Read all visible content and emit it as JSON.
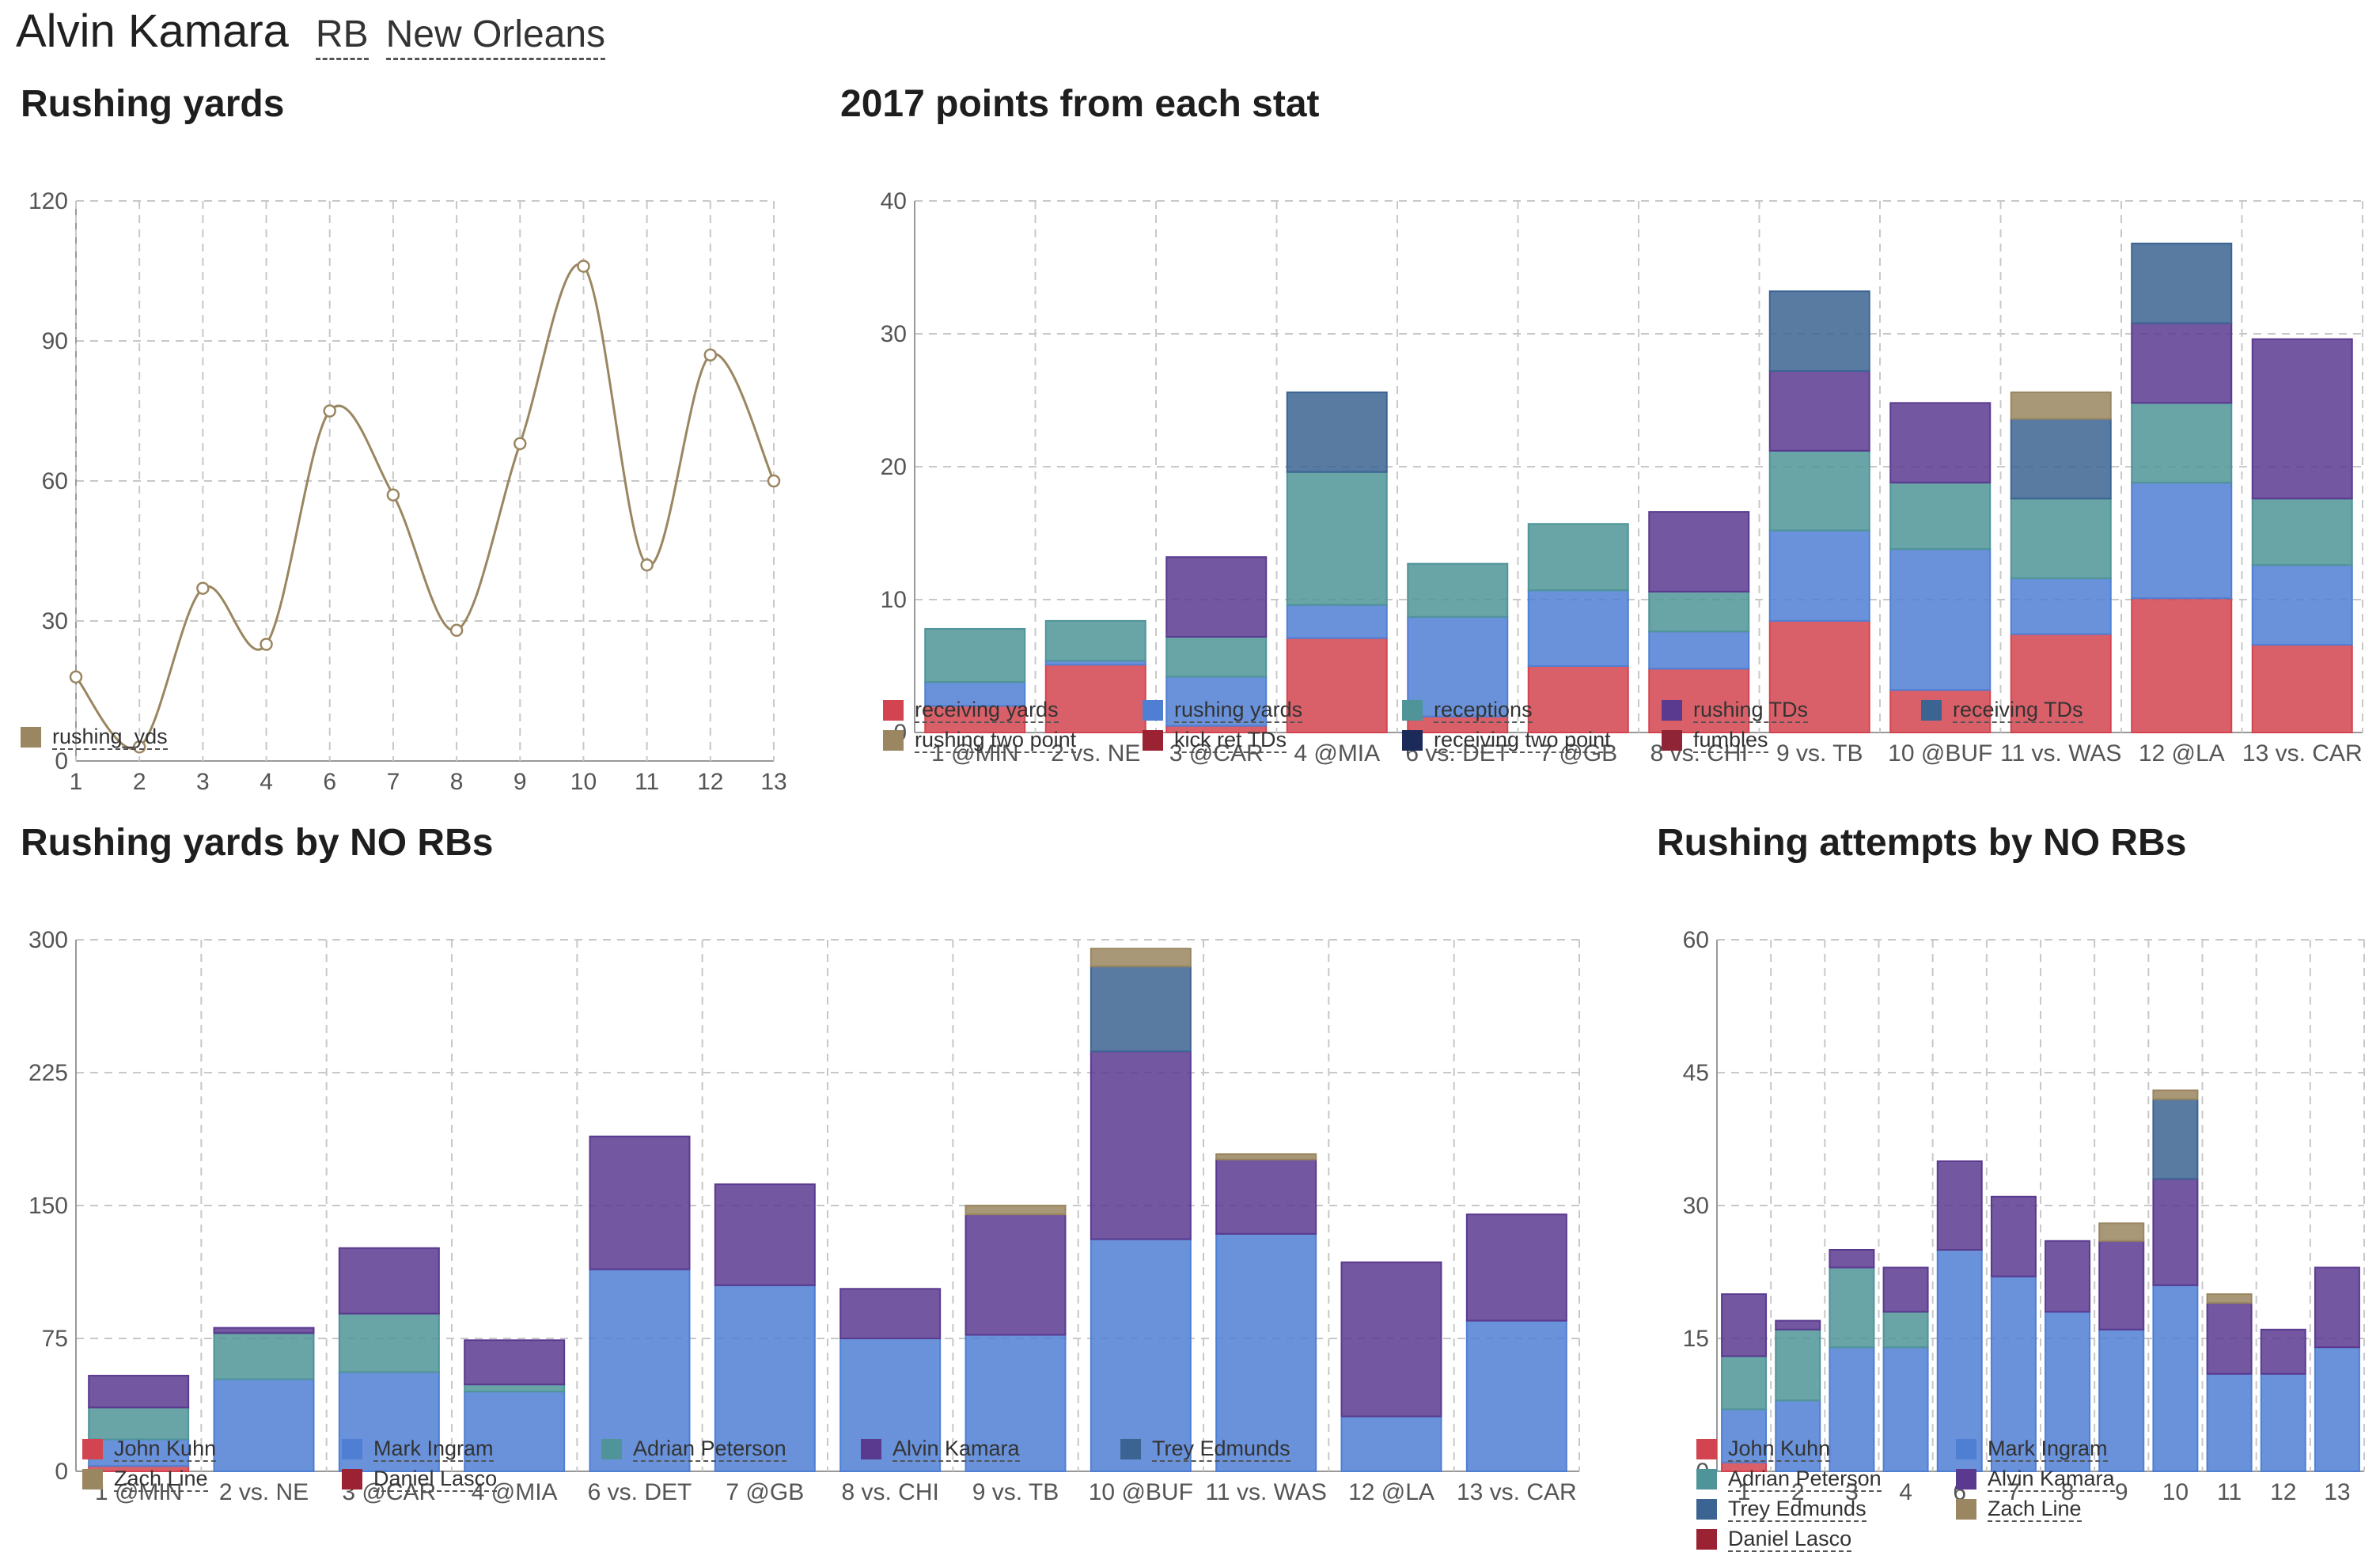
{
  "header": {
    "name": "Alvin Kamara",
    "position": "RB",
    "team": "New Orleans"
  },
  "chart_data": [
    {
      "id": "rushing_yards",
      "type": "line",
      "title": "Rushing yards",
      "x": [
        "1",
        "2",
        "3",
        "4",
        "6",
        "7",
        "8",
        "9",
        "10",
        "11",
        "12",
        "13"
      ],
      "series": [
        {
          "name": "rushing_yds",
          "color": "#9a8660",
          "values": [
            18,
            3,
            37,
            25,
            75,
            57,
            28,
            68,
            106,
            42,
            87,
            60
          ]
        }
      ],
      "ylim": [
        0,
        120
      ],
      "yticks": [
        0,
        30,
        60,
        90,
        120
      ],
      "grid": true,
      "legend": "bottom-left"
    },
    {
      "id": "points_by_stat",
      "type": "bar",
      "stacked": true,
      "title": "2017 points from each stat",
      "categories": [
        "1 @MIN",
        "2 vs. NE",
        "3 @CAR",
        "4 @MIA",
        "6 vs. DET",
        "7 @GB",
        "8 vs. CHI",
        "9 vs. TB",
        "10 @BUF",
        "11 vs. WAS",
        "12 @LA",
        "13 vs. CAR"
      ],
      "series": [
        {
          "name": "receiving yards",
          "color": "#d2444f",
          "values": [
            2.0,
            5.1,
            0.5,
            7.1,
            1.2,
            5.0,
            4.8,
            8.4,
            3.2,
            7.4,
            10.1,
            6.6
          ]
        },
        {
          "name": "rushing yards",
          "color": "#4f7fd3",
          "values": [
            1.8,
            0.3,
            3.7,
            2.5,
            7.5,
            5.7,
            2.8,
            6.8,
            10.6,
            4.2,
            8.7,
            6.0
          ]
        },
        {
          "name": "receptions",
          "color": "#4f9498",
          "values": [
            4.0,
            3.0,
            3.0,
            10.0,
            4.0,
            5.0,
            3.0,
            6.0,
            5.0,
            6.0,
            6.0,
            5.0
          ]
        },
        {
          "name": "rushing TDs",
          "color": "#5a3a8f",
          "values": [
            0,
            0,
            6,
            0,
            0,
            0,
            6,
            6,
            6,
            0,
            6,
            12
          ]
        },
        {
          "name": "receiving TDs",
          "color": "#3c6492",
          "values": [
            0,
            0,
            0,
            6,
            0,
            0,
            0,
            6,
            0,
            6,
            6,
            0
          ]
        },
        {
          "name": "rushing two point",
          "color": "#9a8660",
          "values": [
            0,
            0,
            0,
            0,
            0,
            0,
            0,
            0,
            0,
            2,
            0,
            0
          ]
        },
        {
          "name": "kick ret TDs",
          "color": "#9a2232",
          "values": [
            0,
            0,
            0,
            0,
            0,
            0,
            0,
            0,
            0,
            0,
            0,
            0
          ]
        },
        {
          "name": "receiving two point",
          "color": "#1c2a5a",
          "values": [
            0,
            0,
            0,
            0,
            0,
            0,
            0,
            0,
            0,
            0,
            0,
            0
          ]
        },
        {
          "name": "fumbles",
          "color": "#8f2436",
          "values": [
            0,
            0,
            0,
            0,
            0,
            0,
            0,
            0,
            0,
            0,
            0,
            0
          ]
        }
      ],
      "ylim": [
        0,
        40
      ],
      "yticks": [
        0,
        10,
        20,
        30,
        40
      ],
      "grid": true,
      "legend": "bottom"
    },
    {
      "id": "rush_yards_rbs",
      "type": "bar",
      "stacked": true,
      "title": "Rushing yards by NO RBs",
      "categories": [
        "1 @MIN",
        "2 vs. NE",
        "3 @CAR",
        "4 @MIA",
        "6 vs. DET",
        "7 @GB",
        "8 vs. CHI",
        "9 vs. TB",
        "10 @BUF",
        "11 vs. WAS",
        "12 @LA",
        "13 vs. CAR"
      ],
      "series": [
        {
          "name": "John Kuhn",
          "color": "#d2444f",
          "values": [
            3,
            0,
            0,
            0,
            0,
            0,
            0,
            0,
            0,
            0,
            0,
            0
          ]
        },
        {
          "name": "Mark Ingram",
          "color": "#4f7fd3",
          "values": [
            15,
            52,
            56,
            45,
            114,
            105,
            75,
            77,
            131,
            134,
            31,
            85
          ]
        },
        {
          "name": "Adrian Peterson",
          "color": "#4f9498",
          "values": [
            18,
            26,
            33,
            4,
            0,
            0,
            0,
            0,
            0,
            0,
            0,
            0
          ]
        },
        {
          "name": "Alvin Kamara",
          "color": "#5a3a8f",
          "values": [
            18,
            3,
            37,
            25,
            75,
            57,
            28,
            68,
            106,
            42,
            87,
            60
          ]
        },
        {
          "name": "Trey Edmunds",
          "color": "#3c6492",
          "values": [
            0,
            0,
            0,
            0,
            0,
            0,
            0,
            0,
            48,
            0,
            0,
            0
          ]
        },
        {
          "name": "Zach Line",
          "color": "#9a8660",
          "values": [
            0,
            0,
            0,
            0,
            0,
            0,
            0,
            5,
            10,
            3,
            0,
            0
          ]
        },
        {
          "name": "Daniel Lasco",
          "color": "#9a2232",
          "values": [
            0,
            0,
            0,
            0,
            0,
            0,
            0,
            0,
            0,
            0,
            0,
            0
          ]
        }
      ],
      "ylim": [
        0,
        300
      ],
      "yticks": [
        0,
        75,
        150,
        225,
        300
      ],
      "grid": true,
      "legend": "bottom"
    },
    {
      "id": "rush_att_rbs",
      "type": "bar",
      "stacked": true,
      "title": "Rushing attempts by NO RBs",
      "categories": [
        "1",
        "2",
        "3",
        "4",
        "6",
        "7",
        "8",
        "9",
        "10",
        "11",
        "12",
        "13"
      ],
      "series": [
        {
          "name": "John Kuhn",
          "color": "#d2444f",
          "values": [
            1,
            0,
            0,
            0,
            0,
            0,
            0,
            0,
            0,
            0,
            0,
            0
          ]
        },
        {
          "name": "Mark Ingram",
          "color": "#4f7fd3",
          "values": [
            6,
            8,
            14,
            14,
            25,
            22,
            18,
            16,
            21,
            11,
            11,
            14
          ]
        },
        {
          "name": "Adrian Peterson",
          "color": "#4f9498",
          "values": [
            6,
            8,
            9,
            4,
            0,
            0,
            0,
            0,
            0,
            0,
            0,
            0
          ]
        },
        {
          "name": "Alvin Kamara",
          "color": "#5a3a8f",
          "values": [
            7,
            1,
            2,
            5,
            10,
            9,
            8,
            10,
            12,
            8,
            5,
            9
          ]
        },
        {
          "name": "Trey Edmunds",
          "color": "#3c6492",
          "values": [
            0,
            0,
            0,
            0,
            0,
            0,
            0,
            0,
            9,
            0,
            0,
            0
          ]
        },
        {
          "name": "Zach Line",
          "color": "#9a8660",
          "values": [
            0,
            0,
            0,
            0,
            0,
            0,
            0,
            2,
            1,
            1,
            0,
            0
          ]
        },
        {
          "name": "Daniel Lasco",
          "color": "#9a2232",
          "values": [
            0,
            0,
            0,
            0,
            0,
            0,
            0,
            0,
            0,
            0,
            0,
            0
          ]
        }
      ],
      "ylim": [
        0,
        60
      ],
      "yticks": [
        0,
        15,
        30,
        45,
        60
      ],
      "grid": true,
      "legend": "bottom"
    }
  ]
}
